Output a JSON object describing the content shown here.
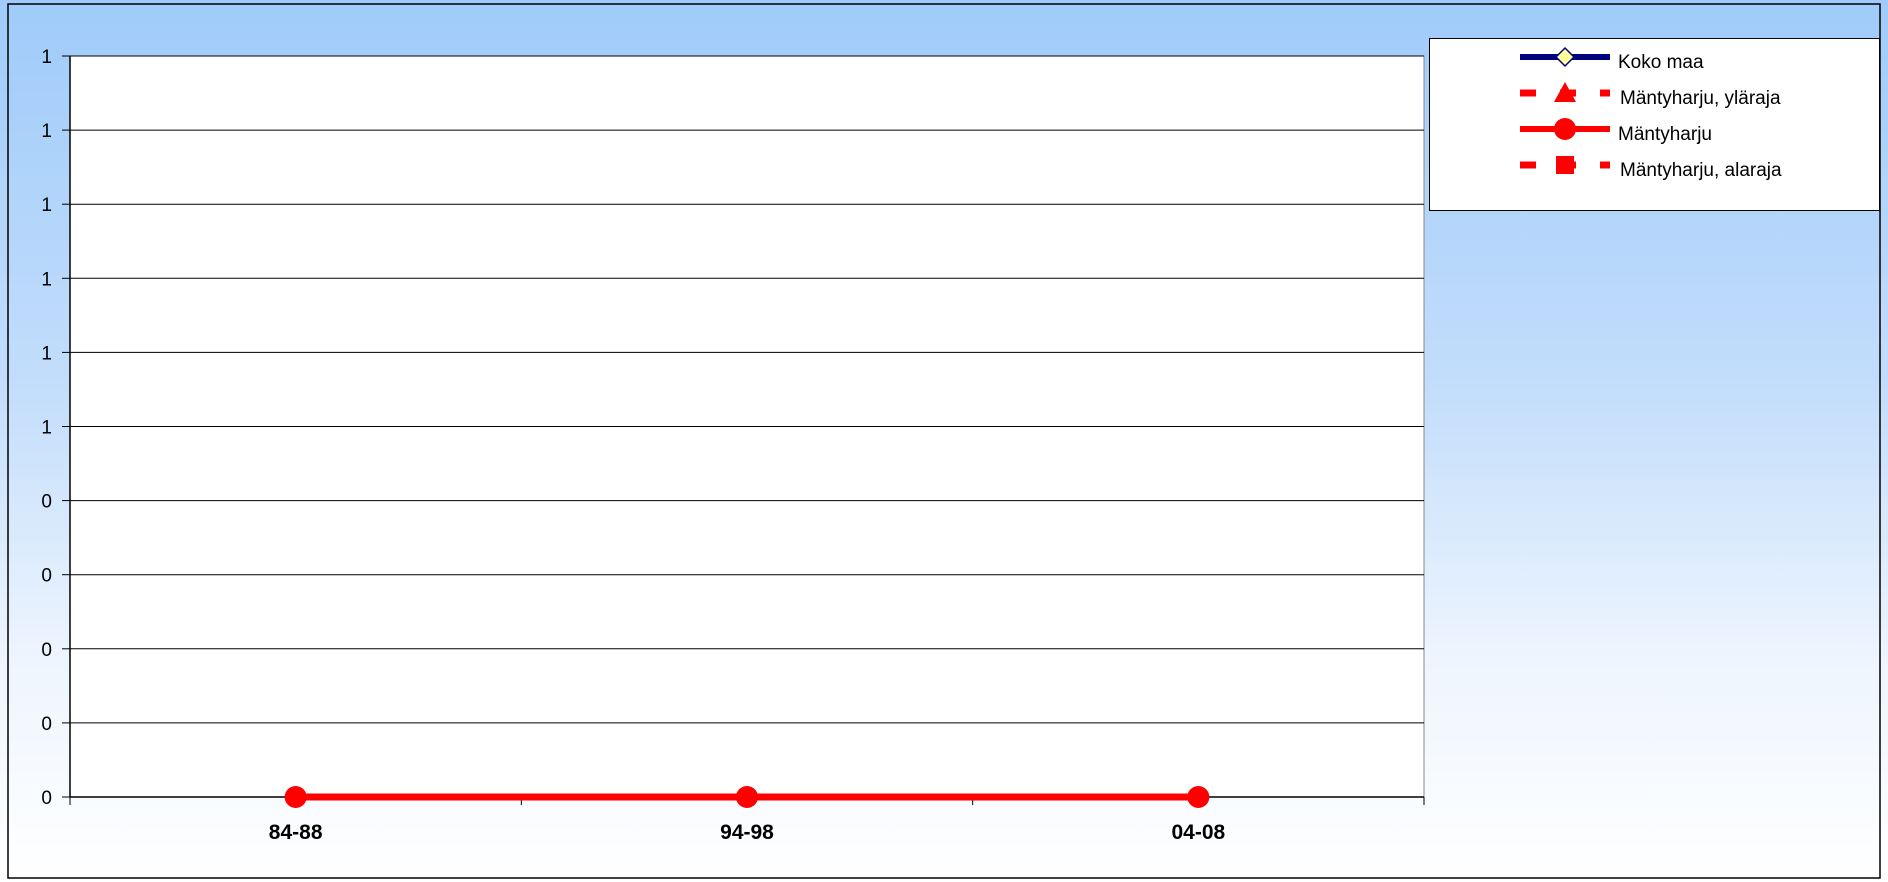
{
  "chart_data": {
    "type": "line",
    "title_fragment": "",
    "categories": [
      "84-88",
      "94-98",
      "04-08"
    ],
    "y_tick_labels": [
      "0",
      "0",
      "0",
      "0",
      "0",
      "1",
      "1",
      "1",
      "1",
      "1",
      "1"
    ],
    "ylim": [
      0,
      1
    ],
    "grid": true,
    "legend_position": "top-right",
    "series": [
      {
        "name": "Koko maa",
        "values": [
          null,
          null,
          null
        ],
        "color": "#000080",
        "marker": "diamond",
        "marker_color": "#ffff99",
        "dashed": false
      },
      {
        "name": "Mäntyharju, yläraja",
        "values": [
          null,
          null,
          null
        ],
        "color": "#ff0000",
        "marker": "triangle",
        "dashed": true
      },
      {
        "name": "Mäntyharju",
        "values": [
          0,
          0,
          0
        ],
        "color": "#ff0000",
        "marker": "circle",
        "dashed": false
      },
      {
        "name": "Mäntyharju, alaraja",
        "values": [
          null,
          null,
          null
        ],
        "color": "#ff0000",
        "marker": "square",
        "dashed": true
      }
    ]
  }
}
